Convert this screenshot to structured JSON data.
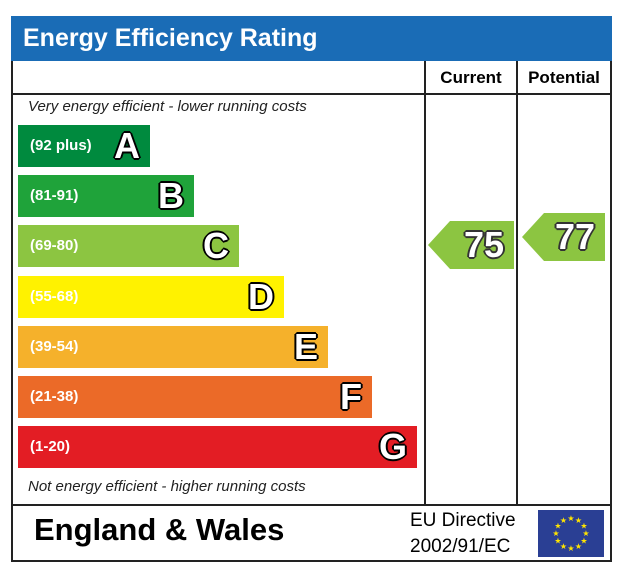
{
  "header": {
    "title": "Energy Efficiency Rating"
  },
  "columns": {
    "current_label": "Current",
    "potential_label": "Potential"
  },
  "notes": {
    "top": "Very energy efficient - lower running costs",
    "bottom": "Not energy efficient - higher running costs"
  },
  "footer": {
    "region": "England & Wales",
    "directive_line1": "EU Directive",
    "directive_line2": "2002/91/EC"
  },
  "colors": {
    "header": "#1a6cb6",
    "A": "#008a3e",
    "B": "#1fa33a",
    "C": "#8cc541",
    "D": "#fff200",
    "E": "#f5b12b",
    "F": "#eb6a28",
    "G": "#e31d24"
  },
  "icons": {
    "eu_flag": "eu-flag-icon"
  },
  "chart_data": {
    "type": "bar",
    "title": "Energy Efficiency Rating",
    "categories": [
      "A",
      "B",
      "C",
      "D",
      "E",
      "F",
      "G"
    ],
    "bands": [
      {
        "letter": "A",
        "range": "(92 plus)"
      },
      {
        "letter": "B",
        "range": "(81-91)"
      },
      {
        "letter": "C",
        "range": "(69-80)"
      },
      {
        "letter": "D",
        "range": "(55-68)"
      },
      {
        "letter": "E",
        "range": "(39-54)"
      },
      {
        "letter": "F",
        "range": "(21-38)"
      },
      {
        "letter": "G",
        "range": "(1-20)"
      }
    ],
    "current": {
      "value": 75,
      "band": "C",
      "label": "75"
    },
    "potential": {
      "value": 77,
      "band": "C",
      "label": "77"
    }
  }
}
